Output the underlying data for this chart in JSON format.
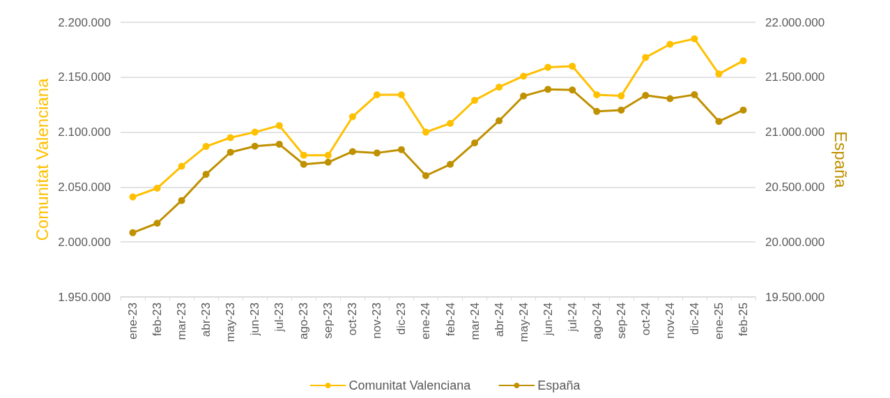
{
  "chart_data": {
    "type": "line",
    "ylabel": "Comunitat Valenciana",
    "y2label": "España",
    "categories": [
      "ene-23",
      "feb-23",
      "mar-23",
      "abr-23",
      "may-23",
      "jun-23",
      "jul-23",
      "ago-23",
      "sep-23",
      "oct-23",
      "nov-23",
      "dic-23",
      "ene-24",
      "feb-24",
      "mar-24",
      "abr-24",
      "may-24",
      "jun-24",
      "jul-24",
      "ago-24",
      "sep-24",
      "oct-24",
      "nov-24",
      "dic-24",
      "ene-25",
      "feb-25"
    ],
    "series": [
      {
        "name": "Comunitat Valenciana",
        "color": "#ffc000",
        "values": [
          2041000,
          2049000,
          2069000,
          2087000,
          2095000,
          2100000,
          2106000,
          2079000,
          2079000,
          2114000,
          2134000,
          2134000,
          2100000,
          2108000,
          2129000,
          2141000,
          2151000,
          2159000,
          2160000,
          2134000,
          2133000,
          2168000,
          2180000,
          2185000,
          2153000,
          2165000
        ]
      },
      {
        "name": "España",
        "color": "#bf9000",
        "axis": "y2",
        "values": [
          20085000,
          20171000,
          20378000,
          20616000,
          20817000,
          20872000,
          20890000,
          20707000,
          20726000,
          20823000,
          20811000,
          20841000,
          20604000,
          20707000,
          20902000,
          21104000,
          21329000,
          21390000,
          21384000,
          21189000,
          21201000,
          21335000,
          21305000,
          21341000,
          21098000,
          21201000
        ]
      }
    ],
    "ylim": [
      1950000,
      2200000
    ],
    "yticks": [
      {
        "value": 1950000,
        "label": "1.950.000"
      },
      {
        "value": 2000000,
        "label": "2.000.000"
      },
      {
        "value": 2050000,
        "label": "2.050.000"
      },
      {
        "value": 2100000,
        "label": "2.100.000"
      },
      {
        "value": 2150000,
        "label": "2.150.000"
      },
      {
        "value": 2200000,
        "label": "2.200.000"
      }
    ],
    "y2lim": [
      19500000,
      22000000
    ],
    "y2ticks": [
      {
        "value": 19500000,
        "label": "19.500.000"
      },
      {
        "value": 20000000,
        "label": "20.000.000"
      },
      {
        "value": 20500000,
        "label": "20.500.000"
      },
      {
        "value": 21000000,
        "label": "21.000.000"
      },
      {
        "value": 21500000,
        "label": "21.500.000"
      },
      {
        "value": 22000000,
        "label": "22.000.000"
      }
    ],
    "grid": "y",
    "legend": "bottom",
    "marker": "circle",
    "line_style": "solid"
  }
}
